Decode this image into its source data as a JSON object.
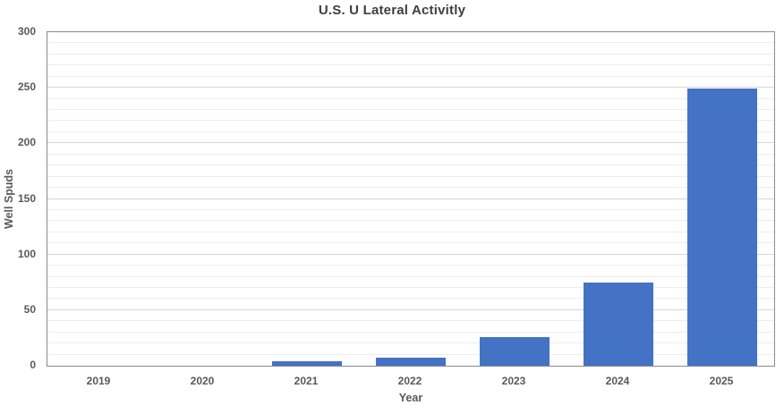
{
  "chart_data": {
    "type": "bar",
    "title": "U.S. U Lateral Activitly",
    "xlabel": "Year",
    "ylabel": "Well Spuds",
    "categories": [
      "2019",
      "2020",
      "2021",
      "2022",
      "2023",
      "2024",
      "2025"
    ],
    "values": [
      0,
      0,
      4,
      7,
      26,
      75,
      249
    ],
    "ylim": [
      0,
      300
    ],
    "y_ticks": [
      0,
      50,
      100,
      150,
      200,
      250,
      300
    ],
    "y_major_step": 50,
    "y_minor_step": 10,
    "grid": true,
    "legend": "none",
    "colors": {
      "bar": "#4472C4",
      "title": "#3f3f3f",
      "tick_label": "#595959",
      "axis_border": "#8a8a8a",
      "major_grid": "#d6d6d6",
      "minor_grid": "#ededed",
      "background": "#ffffff"
    }
  }
}
